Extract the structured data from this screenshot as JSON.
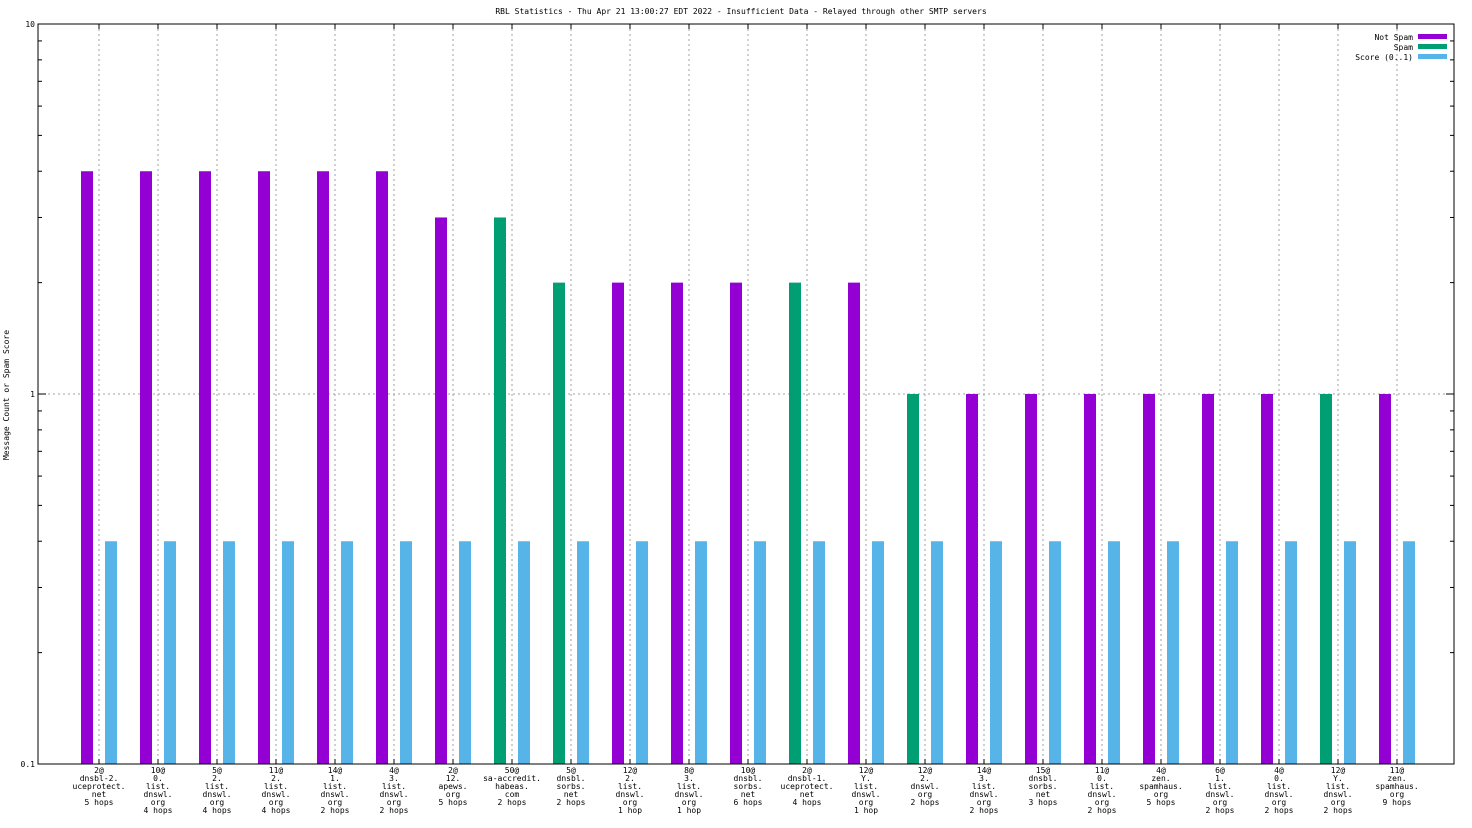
{
  "chart_data": {
    "type": "bar",
    "title": "RBL Statistics - Thu Apr 21 13:00:27 EDT 2022 - Insufficient Data - Relayed through other SMTP servers",
    "ylabel": "Message Count or Spam Score",
    "xlabel": "",
    "yscale": "log",
    "ylim": [
      0.1,
      10
    ],
    "yticks": [
      "0.1",
      "1",
      "10"
    ],
    "grid": true,
    "legend_position": "top-right",
    "colors": {
      "not_spam": "#9400d3",
      "spam": "#009e73",
      "score": "#56b4e9"
    },
    "categories": [
      [
        "2@",
        "dnsbl-2.",
        "uceprotect.",
        "net",
        "5 hops"
      ],
      [
        "10@",
        "0.",
        "list.",
        "dnswl.",
        "org",
        "4 hops"
      ],
      [
        "5@",
        "2.",
        "list.",
        "dnswl.",
        "org",
        "4 hops"
      ],
      [
        "11@",
        "2.",
        "list.",
        "dnswl.",
        "org",
        "4 hops"
      ],
      [
        "14@",
        "1.",
        "list.",
        "dnswl.",
        "org",
        "2 hops"
      ],
      [
        "4@",
        "3.",
        "list.",
        "dnswl.",
        "org",
        "2 hops"
      ],
      [
        "2@",
        "12.",
        "apews.",
        "org",
        "5 hops"
      ],
      [
        "50@",
        "sa-accredit.",
        "habeas.",
        "com",
        "2 hops"
      ],
      [
        "5@",
        "dnsbl.",
        "sorbs.",
        "net",
        "2 hops"
      ],
      [
        "12@",
        "2.",
        "list.",
        "dnswl.",
        "org",
        "1 hop"
      ],
      [
        "8@",
        "3.",
        "list.",
        "dnswl.",
        "org",
        "1 hop"
      ],
      [
        "10@",
        "dnsbl.",
        "sorbs.",
        "net",
        "6 hops"
      ],
      [
        "2@",
        "dnsbl-1.",
        "uceprotect.",
        "net",
        "4 hops"
      ],
      [
        "12@",
        "Y.",
        "list.",
        "dnswl.",
        "org",
        "1 hop"
      ],
      [
        "12@",
        "2.",
        "dnswl.",
        "org",
        "2 hops"
      ],
      [
        "14@",
        "3.",
        "list.",
        "dnswl.",
        "org",
        "2 hops"
      ],
      [
        "15@",
        "dnsbl.",
        "sorbs.",
        "net",
        "3 hops"
      ],
      [
        "11@",
        "0.",
        "list.",
        "dnswl.",
        "org",
        "2 hops"
      ],
      [
        "4@",
        "zen.",
        "spamhaus.",
        "org",
        "5 hops"
      ],
      [
        "6@",
        "1.",
        "list.",
        "dnswl.",
        "org",
        "2 hops"
      ],
      [
        "4@",
        "0.",
        "list.",
        "dnswl.",
        "org",
        "2 hops"
      ],
      [
        "12@",
        "Y.",
        "list.",
        "dnswl.",
        "org",
        "2 hops"
      ],
      [
        "11@",
        "zen.",
        "spamhaus.",
        "org",
        "9 hops"
      ]
    ],
    "series": [
      {
        "name": "Not Spam",
        "values": [
          4,
          4,
          4,
          4,
          4,
          4,
          3,
          null,
          null,
          2,
          2,
          2,
          null,
          2,
          null,
          1,
          1,
          1,
          1,
          1,
          1,
          null,
          1
        ]
      },
      {
        "name": "Spam",
        "values": [
          null,
          null,
          null,
          null,
          null,
          null,
          null,
          3,
          2,
          null,
          null,
          null,
          2,
          null,
          1,
          null,
          null,
          null,
          null,
          null,
          null,
          1,
          null
        ]
      },
      {
        "name": "Score (0..1)",
        "values": [
          0.4,
          0.4,
          0.4,
          0.4,
          0.4,
          0.4,
          0.4,
          0.4,
          0.4,
          0.4,
          0.4,
          0.4,
          0.4,
          0.4,
          0.4,
          0.4,
          0.4,
          0.4,
          0.4,
          0.4,
          0.4,
          0.4,
          0.4
        ]
      }
    ]
  }
}
